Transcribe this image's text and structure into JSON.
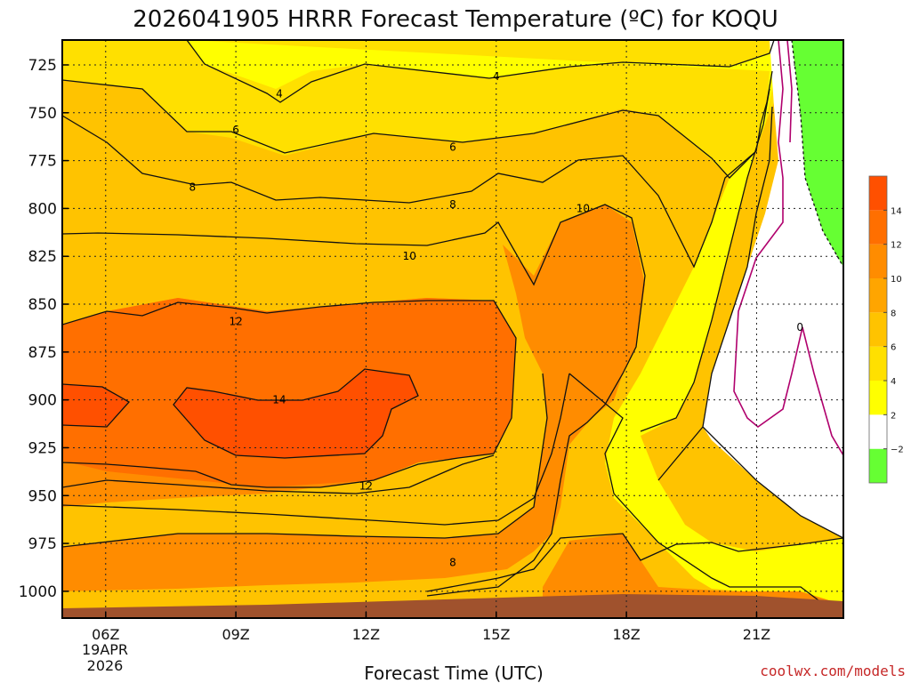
{
  "chart_data": {
    "type": "heatmap",
    "title": "2026041905 HRRR Forecast Temperature (ºC) for KOQU",
    "xlabel": "Forecast Time (UTC)",
    "credit": "coolwx.com/models",
    "x_ticks": [
      {
        "hour": 6,
        "label": "06Z"
      },
      {
        "hour": 9,
        "label": "09Z"
      },
      {
        "hour": 12,
        "label": "12Z"
      },
      {
        "hour": 15,
        "label": "15Z"
      },
      {
        "hour": 18,
        "label": "18Z"
      },
      {
        "hour": 21,
        "label": "21Z"
      }
    ],
    "date_label": [
      "19APR",
      "2026"
    ],
    "xlim": [
      5,
      23
    ],
    "y_ticks": [
      725,
      750,
      775,
      800,
      825,
      850,
      875,
      900,
      925,
      950,
      975,
      1000
    ],
    "ylim": [
      712,
      1014
    ],
    "y_inverted": true,
    "grid": true,
    "colorbar": {
      "placement": "right",
      "bands": [
        {
          "from": -4,
          "to": -2,
          "color": "#66ff33"
        },
        {
          "from": -2,
          "to": 2,
          "color": "#ffffff"
        },
        {
          "from": 2,
          "to": 4,
          "color": "#ffff00"
        },
        {
          "from": 4,
          "to": 6,
          "color": "#ffe000"
        },
        {
          "from": 6,
          "to": 8,
          "color": "#ffc300"
        },
        {
          "from": 8,
          "to": 10,
          "color": "#ffa500"
        },
        {
          "from": 10,
          "to": 12,
          "color": "#ff8c00"
        },
        {
          "from": 12,
          "to": 14,
          "color": "#ff6f00"
        },
        {
          "from": 14,
          "to": 16,
          "color": "#ff5000"
        }
      ],
      "tick_labels": [
        "14",
        "12",
        "10",
        "8",
        "6",
        "4",
        "2",
        "−2"
      ]
    },
    "terrain_color": "#a0522d",
    "contour_labels": [
      {
        "value": "4",
        "hour": 10.0,
        "p": 740
      },
      {
        "value": "4",
        "hour": 15.0,
        "p": 731
      },
      {
        "value": "6",
        "hour": 9.0,
        "p": 759
      },
      {
        "value": "6",
        "hour": 14.0,
        "p": 768
      },
      {
        "value": "8",
        "hour": 8.0,
        "p": 789
      },
      {
        "value": "8",
        "hour": 14.0,
        "p": 798
      },
      {
        "value": "10",
        "hour": 13.0,
        "p": 825
      },
      {
        "value": "10",
        "hour": 17.0,
        "p": 800
      },
      {
        "value": "12",
        "hour": 9.0,
        "p": 859
      },
      {
        "value": "12",
        "hour": 12.0,
        "p": 945
      },
      {
        "value": "14",
        "hour": 10.0,
        "p": 900
      },
      {
        "value": "8",
        "hour": 14.0,
        "p": 985
      },
      {
        "value": "0",
        "hour": 22.0,
        "p": 862
      }
    ]
  }
}
